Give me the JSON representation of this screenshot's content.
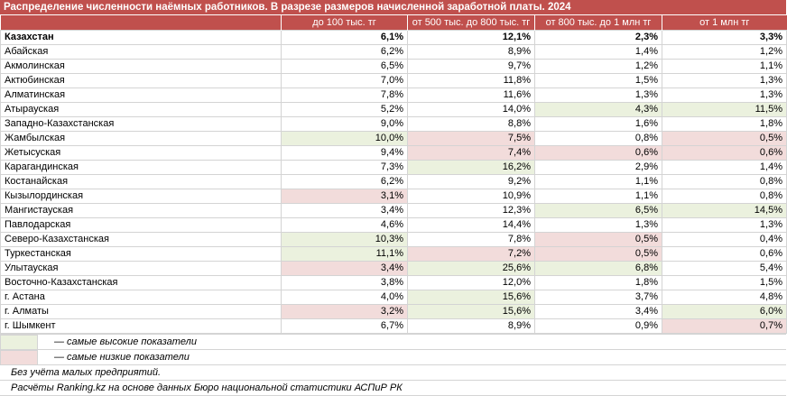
{
  "title": "Распределение численности наёмных работников. В разрезе размеров начисленной заработной платы. 2024",
  "columns": [
    "до 100 тыс. тг",
    "от 500 тыс. до 800 тыс. тг",
    "от 800 тыс. до 1 млн тг",
    "от 1 млн тг"
  ],
  "rows": [
    {
      "name": "Казахстан",
      "bold": true,
      "values": [
        "6,1%",
        "12,1%",
        "2,3%",
        "3,3%"
      ],
      "marks": [
        "",
        "",
        "",
        ""
      ]
    },
    {
      "name": "Абайская",
      "values": [
        "6,2%",
        "8,9%",
        "1,4%",
        "1,2%"
      ],
      "marks": [
        "",
        "",
        "",
        ""
      ]
    },
    {
      "name": "Акмолинская",
      "values": [
        "6,5%",
        "9,7%",
        "1,2%",
        "1,1%"
      ],
      "marks": [
        "",
        "",
        "",
        ""
      ]
    },
    {
      "name": "Актюбинская",
      "values": [
        "7,0%",
        "11,8%",
        "1,5%",
        "1,3%"
      ],
      "marks": [
        "",
        "",
        "",
        ""
      ]
    },
    {
      "name": "Алматинская",
      "values": [
        "7,8%",
        "11,6%",
        "1,3%",
        "1,3%"
      ],
      "marks": [
        "",
        "",
        "",
        ""
      ]
    },
    {
      "name": "Атырауская",
      "values": [
        "5,2%",
        "14,0%",
        "4,3%",
        "11,5%"
      ],
      "marks": [
        "",
        "",
        "hi",
        "hi"
      ]
    },
    {
      "name": "Западно-Казахстанская",
      "values": [
        "9,0%",
        "8,8%",
        "1,6%",
        "1,8%"
      ],
      "marks": [
        "",
        "",
        "",
        ""
      ]
    },
    {
      "name": "Жамбылская",
      "values": [
        "10,0%",
        "7,5%",
        "0,8%",
        "0,5%"
      ],
      "marks": [
        "hi",
        "lo",
        "",
        "lo"
      ]
    },
    {
      "name": "Жетысуская",
      "values": [
        "9,4%",
        "7,4%",
        "0,6%",
        "0,6%"
      ],
      "marks": [
        "",
        "lo",
        "lo",
        "lo"
      ]
    },
    {
      "name": "Карагандинская",
      "values": [
        "7,3%",
        "16,2%",
        "2,9%",
        "1,4%"
      ],
      "marks": [
        "",
        "hi",
        "",
        ""
      ]
    },
    {
      "name": "Костанайская",
      "values": [
        "6,2%",
        "9,2%",
        "1,1%",
        "0,8%"
      ],
      "marks": [
        "",
        "",
        "",
        ""
      ]
    },
    {
      "name": "Кызылординская",
      "values": [
        "3,1%",
        "10,9%",
        "1,1%",
        "0,8%"
      ],
      "marks": [
        "lo",
        "",
        "",
        ""
      ]
    },
    {
      "name": "Мангистауская",
      "values": [
        "3,4%",
        "12,3%",
        "6,5%",
        "14,5%"
      ],
      "marks": [
        "",
        "",
        "hi",
        "hi"
      ]
    },
    {
      "name": "Павлодарская",
      "values": [
        "4,6%",
        "14,4%",
        "1,3%",
        "1,3%"
      ],
      "marks": [
        "",
        "",
        "",
        ""
      ]
    },
    {
      "name": "Северо-Казахстанская",
      "values": [
        "10,3%",
        "7,8%",
        "0,5%",
        "0,4%"
      ],
      "marks": [
        "hi",
        "",
        "lo",
        ""
      ]
    },
    {
      "name": "Туркестанская",
      "values": [
        "11,1%",
        "7,2%",
        "0,5%",
        "0,6%"
      ],
      "marks": [
        "hi",
        "lo",
        "lo",
        ""
      ]
    },
    {
      "name": "Улытауская",
      "values": [
        "3,4%",
        "25,6%",
        "6,8%",
        "5,4%"
      ],
      "marks": [
        "lo",
        "hi",
        "hi",
        ""
      ]
    },
    {
      "name": "Восточно-Казахстанская",
      "values": [
        "3,8%",
        "12,0%",
        "1,8%",
        "1,5%"
      ],
      "marks": [
        "",
        "",
        "",
        ""
      ]
    },
    {
      "name": "г. Астана",
      "values": [
        "4,0%",
        "15,6%",
        "3,7%",
        "4,8%"
      ],
      "marks": [
        "",
        "hi",
        "",
        ""
      ]
    },
    {
      "name": "г. Алматы",
      "values": [
        "3,2%",
        "15,6%",
        "3,4%",
        "6,0%"
      ],
      "marks": [
        "lo",
        "hi",
        "",
        "hi"
      ]
    },
    {
      "name": "г. Шымкент",
      "values": [
        "6,7%",
        "8,9%",
        "0,9%",
        "0,7%"
      ],
      "marks": [
        "",
        "",
        "",
        "lo"
      ]
    }
  ],
  "legend": {
    "high": "— самые высокие показатели",
    "low": "— самые низкие показатели"
  },
  "notes": [
    "Без учёта малых предприятий.",
    "Расчёты Ranking.kz на основе данных Бюро национальной статистики АСПиР РК"
  ],
  "colors": {
    "header": "#c0504d",
    "high": "#ebf1de",
    "low": "#f2dcdb"
  }
}
